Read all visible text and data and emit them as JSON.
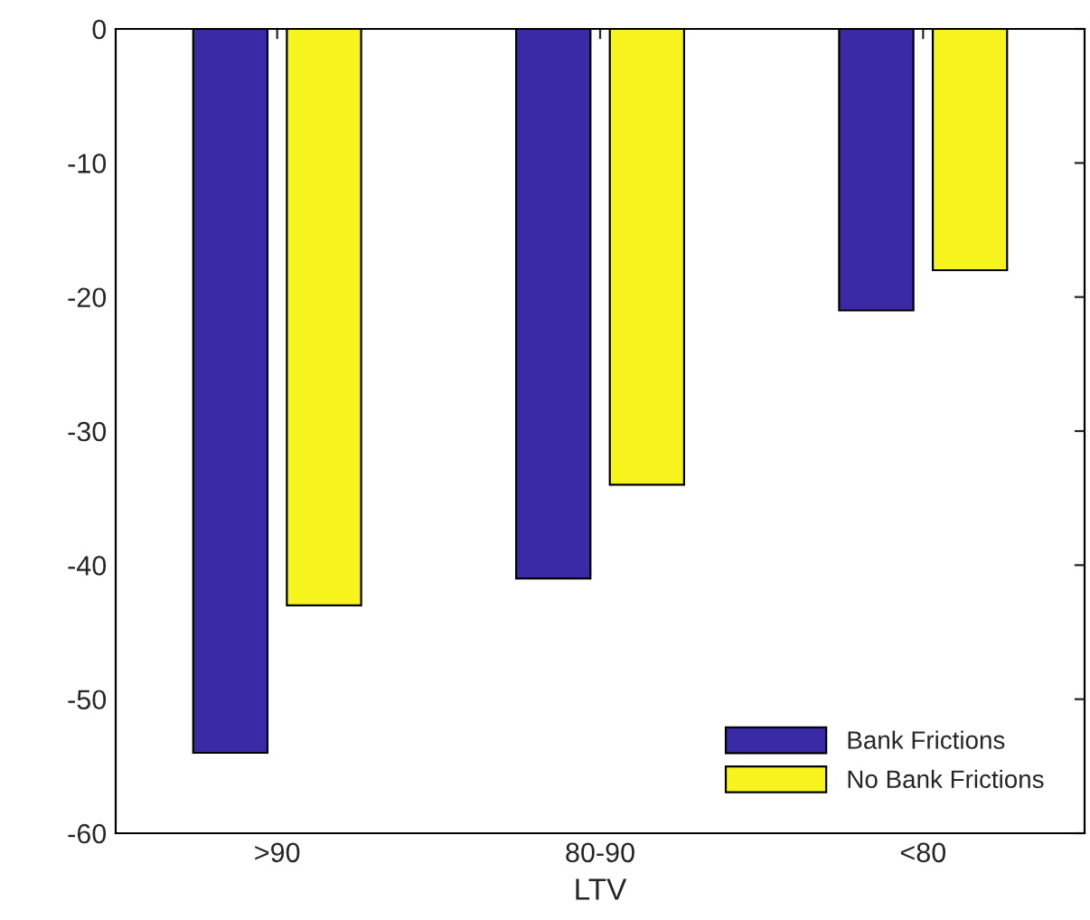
{
  "chart_data": {
    "type": "bar",
    "xlabel": "LTV",
    "categories": [
      ">90",
      "80-90",
      "<80"
    ],
    "series": [
      {
        "name": "Bank Frictions",
        "color": "#3b2aa6",
        "values": [
          -54,
          -41,
          -21
        ]
      },
      {
        "name": "No Bank Frictions",
        "color": "#f6f41c",
        "values": [
          -43,
          -34,
          -18
        ]
      }
    ],
    "ylim": [
      -60,
      0
    ],
    "yticks": [
      -60,
      -50,
      -40,
      -30,
      -20,
      -10,
      0
    ],
    "grid": false,
    "legend": "bottom right"
  }
}
